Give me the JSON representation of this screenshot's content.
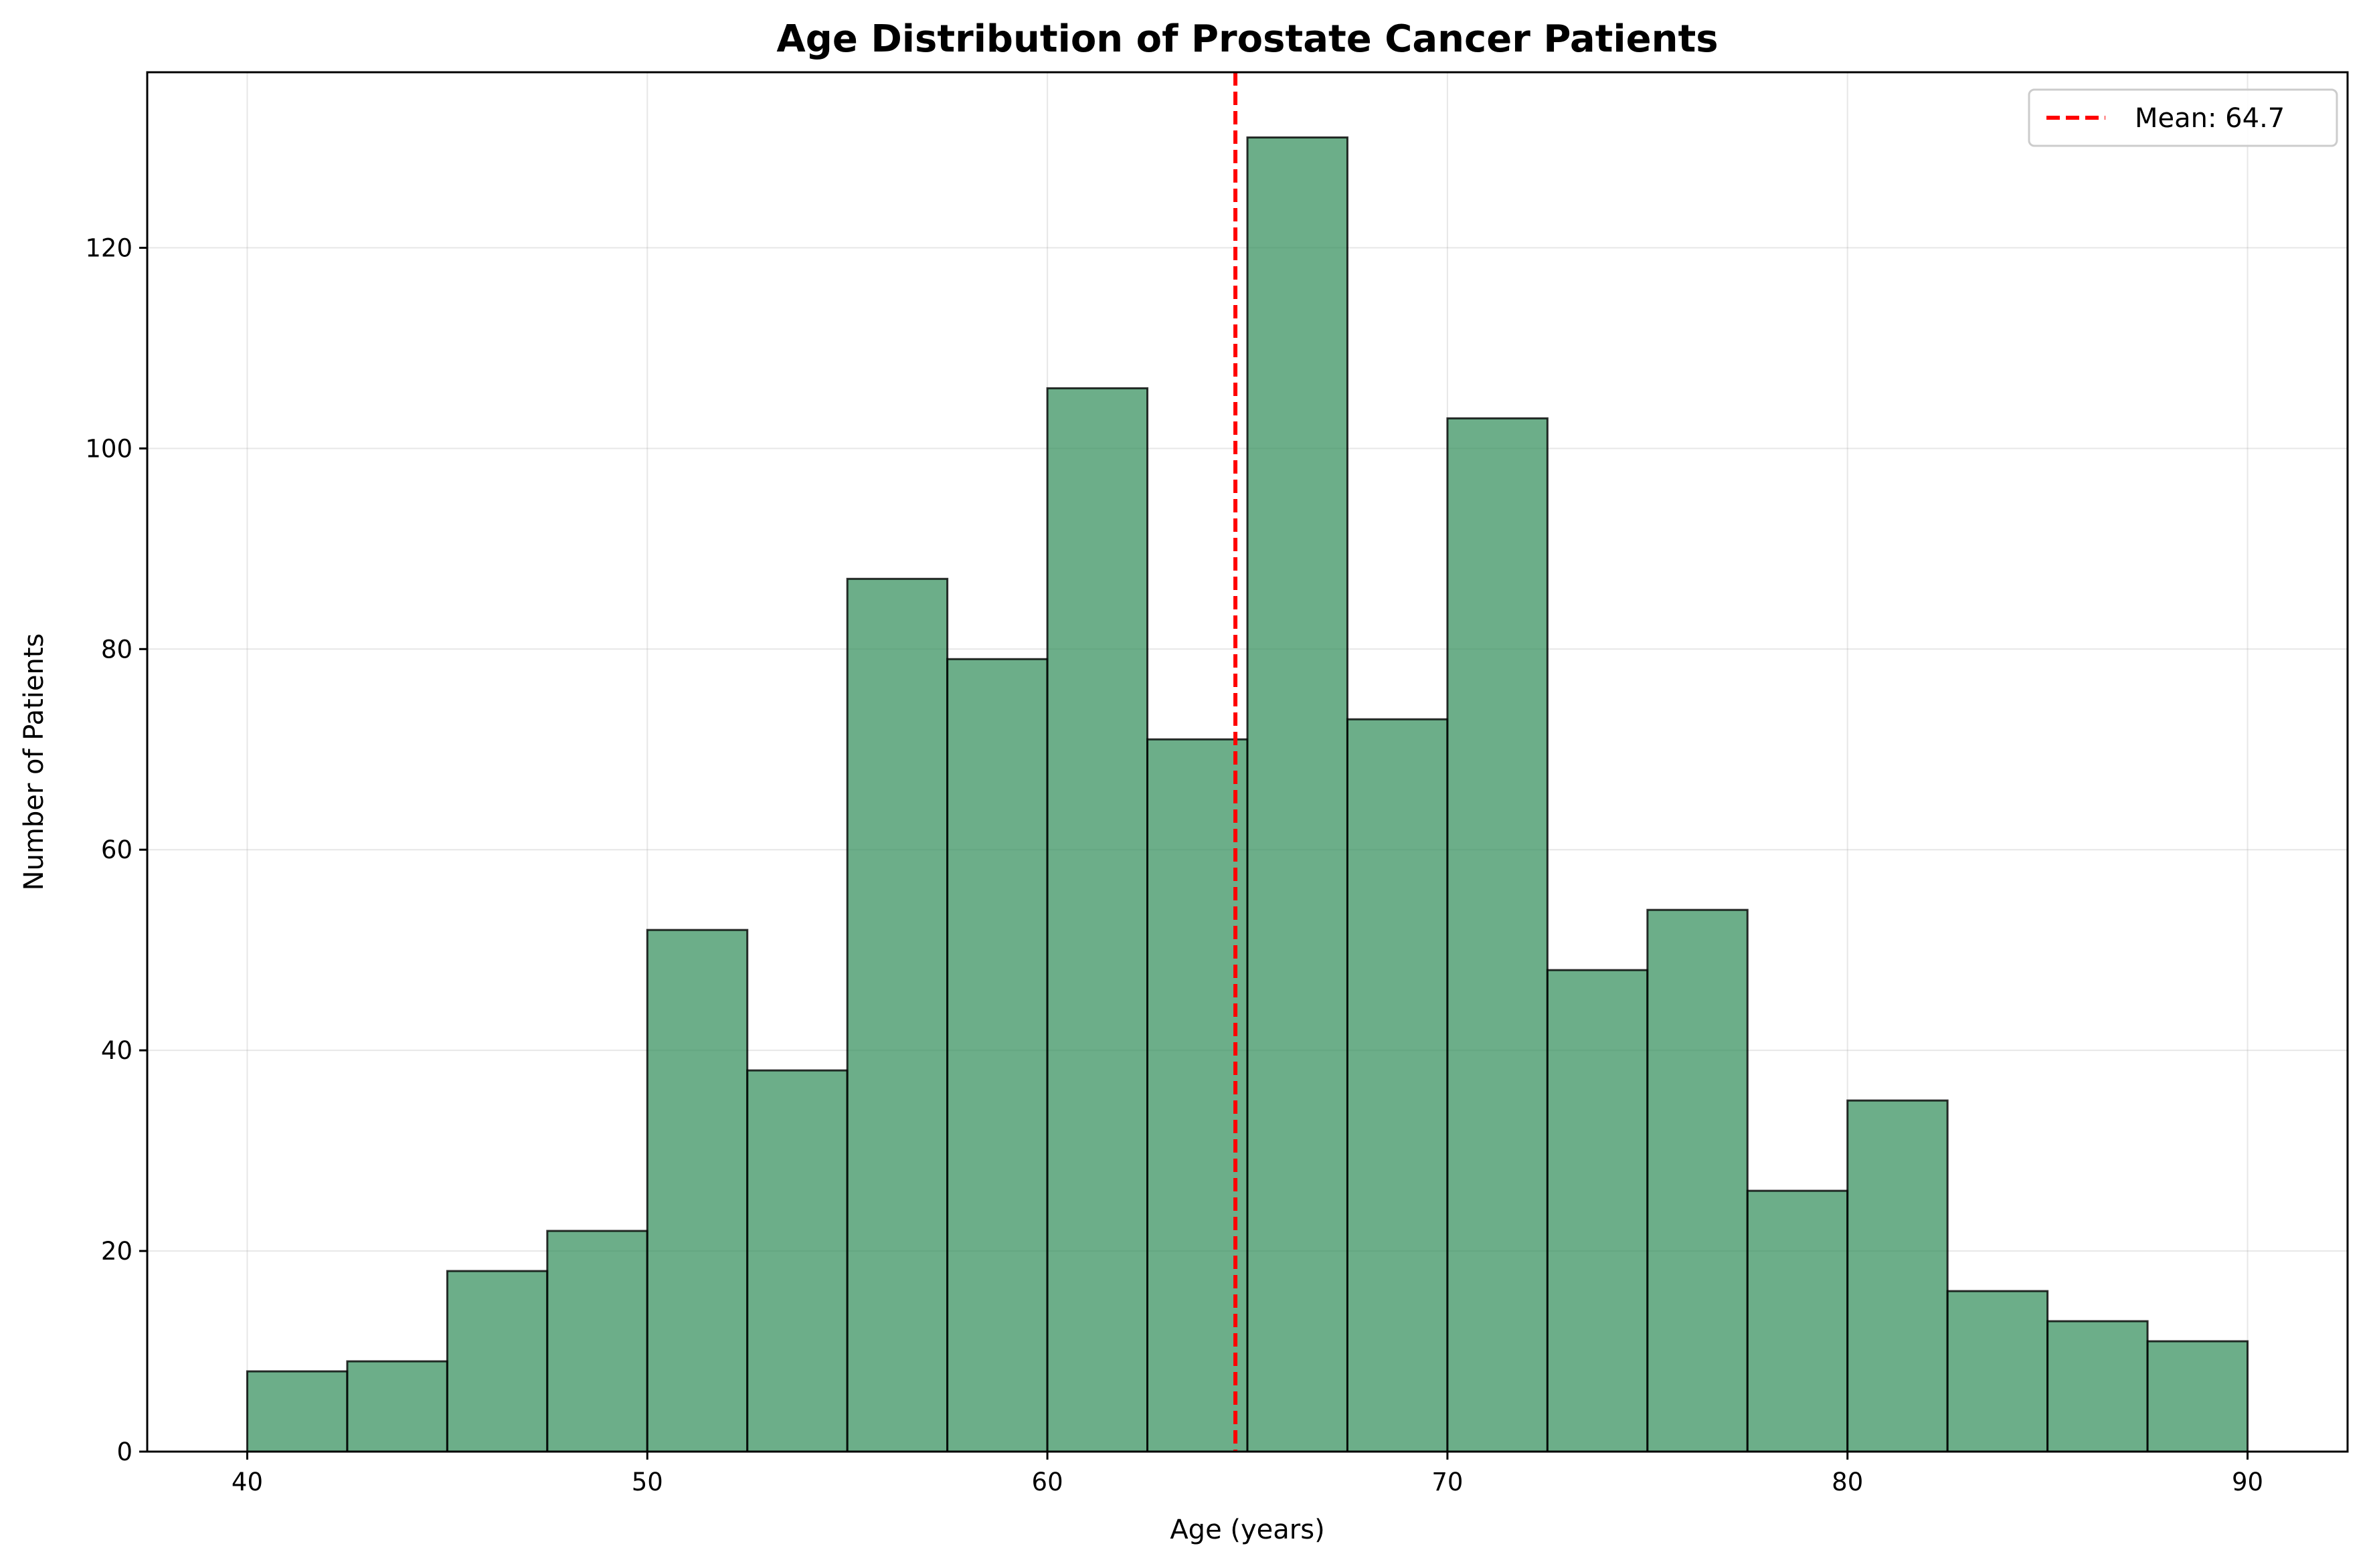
{
  "chart_data": {
    "type": "bar",
    "title": "Age Distribution of Prostate Cancer Patients",
    "xlabel": "Age (years)",
    "ylabel": "Number of Patients",
    "bin_edges": [
      40,
      42.5,
      45,
      47.5,
      50,
      52.5,
      55,
      57.5,
      60,
      62.5,
      65,
      67.5,
      70,
      72.5,
      75,
      77.5,
      80,
      82.5,
      85,
      87.5,
      90
    ],
    "values": [
      8,
      9,
      18,
      22,
      52,
      38,
      87,
      79,
      106,
      71,
      131,
      73,
      103,
      48,
      54,
      26,
      35,
      16,
      13,
      11
    ],
    "xlim": [
      37.5,
      92.5
    ],
    "ylim": [
      0,
      137.5
    ],
    "xticks": [
      40,
      50,
      60,
      70,
      80,
      90
    ],
    "yticks": [
      0,
      20,
      40,
      60,
      80,
      100,
      120
    ],
    "grid": true,
    "bar_color": "#2e8b57",
    "edge_color": "#000000",
    "mean_line": {
      "value": 64.7,
      "label": "Mean: 64.7",
      "color": "#ff0000",
      "style": "dashed"
    },
    "legend": {
      "position": "top-right"
    }
  }
}
